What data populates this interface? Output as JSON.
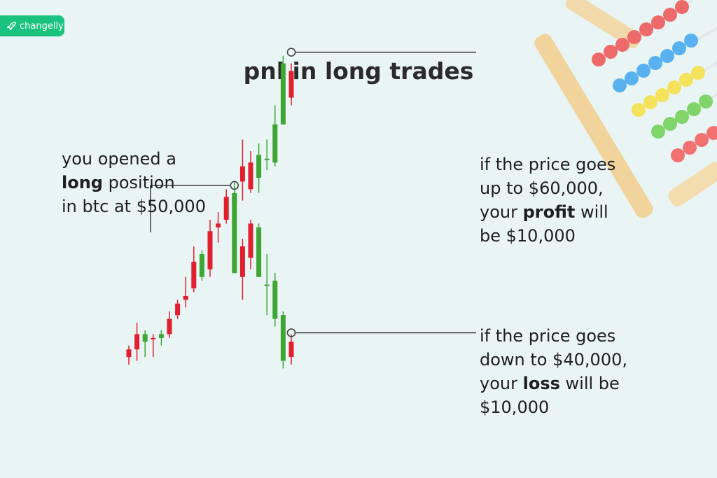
{
  "brand": {
    "name": "changelly",
    "color": "#19c37d"
  },
  "title": "pnl in long trades",
  "annotations": {
    "entry": {
      "pre": "you opened a",
      "bold": "long",
      "post": "position",
      "line3": "in btc at $50,000"
    },
    "profit": {
      "line1": "if the price goes",
      "line2": "up to $60,000,",
      "pre": "your",
      "bold": "profit",
      "post": "will",
      "line4": "be $10,000"
    },
    "loss": {
      "line1": "if the price goes",
      "line2": "down to $40,000,",
      "pre": "your",
      "bold": "loss",
      "post": "will be",
      "line4": "$10,000"
    }
  },
  "colors": {
    "up": "#3fa535",
    "down": "#e0202e",
    "line": "#3a3a3a"
  },
  "chart_data": {
    "type": "candlestick",
    "prices": {
      "entry": 50000,
      "profit_target": 60000,
      "loss_target": 40000
    },
    "shared": [
      {
        "o": 0.33,
        "c": 0.35,
        "h": 0.36,
        "l": 0.31,
        "d": "down"
      },
      {
        "o": 0.39,
        "c": 0.35,
        "h": 0.42,
        "l": 0.32,
        "d": "down"
      },
      {
        "o": 0.37,
        "c": 0.39,
        "h": 0.4,
        "l": 0.33,
        "d": "up"
      },
      {
        "o": 0.38,
        "c": 0.38,
        "h": 0.39,
        "l": 0.33,
        "d": "down"
      },
      {
        "o": 0.38,
        "c": 0.39,
        "h": 0.4,
        "l": 0.36,
        "d": "up"
      },
      {
        "o": 0.43,
        "c": 0.39,
        "h": 0.45,
        "l": 0.38,
        "d": "down"
      },
      {
        "o": 0.47,
        "c": 0.44,
        "h": 0.48,
        "l": 0.43,
        "d": "down"
      },
      {
        "o": 0.49,
        "c": 0.48,
        "h": 0.54,
        "l": 0.46,
        "d": "down"
      },
      {
        "o": 0.58,
        "c": 0.51,
        "h": 0.62,
        "l": 0.5,
        "d": "down"
      },
      {
        "o": 0.54,
        "c": 0.6,
        "h": 0.61,
        "l": 0.53,
        "d": "up"
      },
      {
        "o": 0.66,
        "c": 0.56,
        "h": 0.69,
        "l": 0.54,
        "d": "down"
      },
      {
        "o": 0.68,
        "c": 0.67,
        "h": 0.71,
        "l": 0.63,
        "d": "down"
      },
      {
        "o": 0.75,
        "c": 0.69,
        "h": 0.77,
        "l": 0.68,
        "d": "down"
      },
      {
        "o": 0.73,
        "c": 0.75,
        "h": 0.79,
        "l": 0.72,
        "d": "up"
      }
    ],
    "up_branch": [
      {
        "o": 0.83,
        "c": 0.79,
        "h": 0.9,
        "l": 0.74,
        "d": "down"
      },
      {
        "o": 0.84,
        "c": 0.77,
        "h": 0.87,
        "l": 0.76,
        "d": "down"
      },
      {
        "o": 0.8,
        "c": 0.86,
        "h": 0.89,
        "l": 0.76,
        "d": "up"
      },
      {
        "o": 0.85,
        "c": 0.85,
        "h": 0.9,
        "l": 0.82,
        "d": "up"
      },
      {
        "o": 0.84,
        "c": 0.94,
        "h": 0.99,
        "l": 0.83,
        "d": "up"
      },
      {
        "o": 0.94,
        "c": 1.1,
        "h": 1.12,
        "l": 0.94,
        "d": "up"
      },
      {
        "o": 1.08,
        "c": 1.01,
        "h": 1.1,
        "l": 0.99,
        "d": "down"
      }
    ],
    "down_branch": [
      {
        "o": 0.76,
        "c": 0.55,
        "h": 0.77,
        "l": 0.55,
        "d": "up"
      },
      {
        "o": 0.62,
        "c": 0.54,
        "h": 0.64,
        "l": 0.48,
        "d": "down"
      },
      {
        "o": 0.68,
        "c": 0.59,
        "h": 0.69,
        "l": 0.56,
        "d": "down"
      },
      {
        "o": 0.67,
        "c": 0.54,
        "h": 0.68,
        "l": 0.54,
        "d": "up"
      },
      {
        "o": 0.52,
        "c": 0.52,
        "h": 0.6,
        "l": 0.44,
        "d": "up"
      },
      {
        "o": 0.53,
        "c": 0.43,
        "h": 0.55,
        "l": 0.41,
        "d": "up"
      },
      {
        "o": 0.44,
        "c": 0.32,
        "h": 0.45,
        "l": 0.3,
        "d": "up"
      },
      {
        "o": 0.37,
        "c": 0.33,
        "h": 0.39,
        "l": 0.31,
        "d": "down"
      }
    ]
  }
}
